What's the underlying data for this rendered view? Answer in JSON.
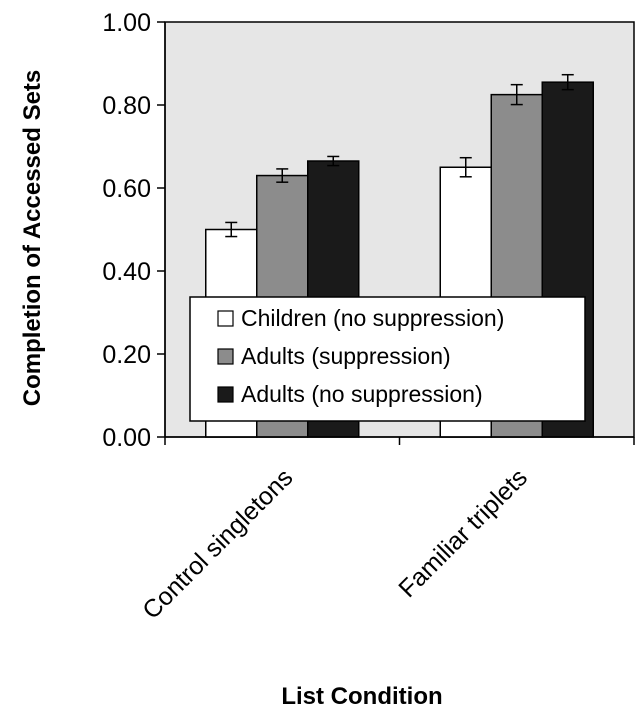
{
  "chart_data": {
    "type": "bar",
    "title": "",
    "xlabel": "List Condition",
    "ylabel": "Completion of Accessed  Sets",
    "ylim": [
      0,
      1.0
    ],
    "yticks": [
      "0.00",
      "0.20",
      "0.40",
      "0.60",
      "0.80",
      "1.00"
    ],
    "categories": [
      "Control singletons",
      "Familiar triplets"
    ],
    "series": [
      {
        "name": "Children (no suppression)",
        "values": [
          0.5,
          0.65
        ],
        "errors": [
          0.017,
          0.023
        ],
        "color": "#ffffff"
      },
      {
        "name": "Adults (suppression)",
        "values": [
          0.63,
          0.825
        ],
        "errors": [
          0.016,
          0.024
        ],
        "color": "#8c8c8c"
      },
      {
        "name": "Adults (no suppression)",
        "values": [
          0.665,
          0.855
        ],
        "errors": [
          0.011,
          0.018
        ],
        "color": "#1a1a1a"
      }
    ],
    "plot_background": "#e6e6e6",
    "grid": false,
    "legend": "inside-bottom"
  }
}
